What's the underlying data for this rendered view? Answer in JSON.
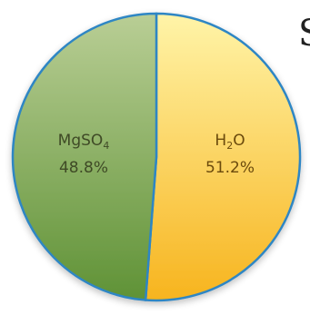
{
  "chart_data": {
    "type": "pie",
    "title": "",
    "slices": [
      {
        "label": "MgSO4",
        "formula_base": "MgSO",
        "formula_subscript": "4",
        "value": 48.8,
        "value_text": "48.8%",
        "color_light": "#b9ce95",
        "color_dark": "#5f9236"
      },
      {
        "label": "H2O",
        "formula_base": "H",
        "formula_subscript": "2",
        "formula_tail": "O",
        "value": 51.2,
        "value_text": "51.2%",
        "color_light": "#fff4a8",
        "color_dark": "#f7b41e"
      }
    ],
    "start_angle_deg": 0,
    "direction": "clockwise-from-top (H2O first)",
    "outline_color": "#2f86c4",
    "partial_glyph_text": "S"
  }
}
